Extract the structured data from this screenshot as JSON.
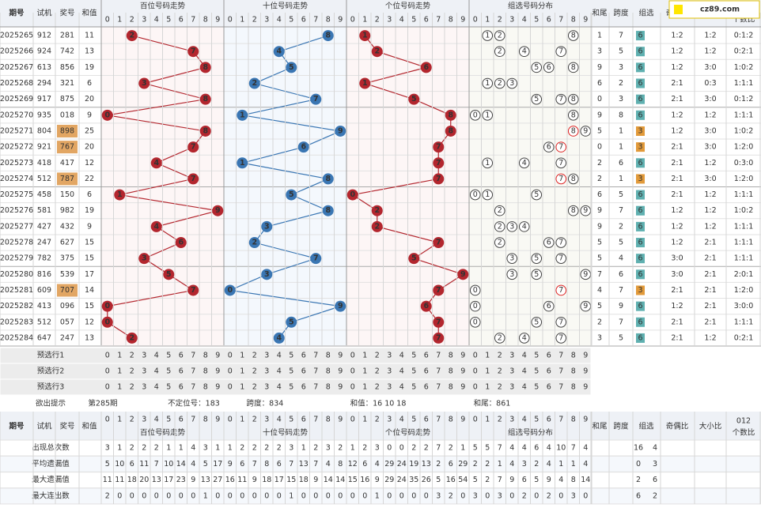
{
  "logo": "cz89.com",
  "header": {
    "period": "期号",
    "trial": "试机",
    "prize": "奖号",
    "sum": "和值",
    "sections": [
      "百位号码走势",
      "十位号码走势",
      "个位号码走势",
      "组选号码分布"
    ],
    "digits": [
      0,
      1,
      2,
      3,
      4,
      5,
      6,
      7,
      8,
      9
    ],
    "tail": "和尾",
    "span": "跨度",
    "group": "组选",
    "odd_even": "奇偶比",
    "big_small": "大小比",
    "mod3": [
      "012",
      "个数比"
    ]
  },
  "rows": [
    {
      "period": "2025265",
      "trial": "912",
      "prize": "281",
      "sum": 11,
      "digits": [
        2,
        8,
        1
      ],
      "group_digits": [
        1,
        2,
        8
      ],
      "tail": 1,
      "span": 7,
      "group": 6,
      "odd_even": "1:2",
      "big_small": "1:2",
      "mod3": "0:1:2"
    },
    {
      "period": "2025266",
      "trial": "924",
      "prize": "742",
      "sum": 13,
      "digits": [
        7,
        4,
        2
      ],
      "group_digits": [
        2,
        4,
        7
      ],
      "tail": 3,
      "span": 5,
      "group": 6,
      "odd_even": "1:2",
      "big_small": "1:2",
      "mod3": "0:2:1"
    },
    {
      "period": "2025267",
      "trial": "613",
      "prize": "856",
      "sum": 19,
      "digits": [
        8,
        5,
        6
      ],
      "group_digits": [
        5,
        6,
        8
      ],
      "tail": 9,
      "span": 3,
      "group": 6,
      "odd_even": "1:2",
      "big_small": "3:0",
      "mod3": "1:0:2"
    },
    {
      "period": "2025268",
      "trial": "294",
      "prize": "321",
      "sum": 6,
      "digits": [
        3,
        2,
        1
      ],
      "group_digits": [
        1,
        2,
        3
      ],
      "tail": 6,
      "span": 2,
      "group": 6,
      "odd_even": "2:1",
      "big_small": "0:3",
      "mod3": "1:1:1"
    },
    {
      "period": "2025269",
      "trial": "917",
      "prize": "875",
      "sum": 20,
      "digits": [
        8,
        7,
        5
      ],
      "group_digits": [
        5,
        7,
        8
      ],
      "tail": 0,
      "span": 3,
      "group": 6,
      "odd_even": "2:1",
      "big_small": "3:0",
      "mod3": "0:1:2"
    },
    {
      "period": "2025270",
      "trial": "935",
      "prize": "018",
      "sum": 9,
      "digits": [
        0,
        1,
        8
      ],
      "group_digits": [
        0,
        1,
        8
      ],
      "tail": 9,
      "span": 8,
      "group": 6,
      "odd_even": "1:2",
      "big_small": "1:2",
      "mod3": "1:1:1"
    },
    {
      "period": "2025271",
      "trial": "804",
      "prize": "898",
      "sum": 25,
      "digits": [
        8,
        9,
        8
      ],
      "group_digits": [
        8,
        9
      ],
      "repeat": 8,
      "tail": 5,
      "span": 1,
      "group": 3,
      "odd_even": "1:2",
      "big_small": "3:0",
      "mod3": "1:0:2"
    },
    {
      "period": "2025272",
      "trial": "921",
      "prize": "767",
      "sum": 20,
      "digits": [
        7,
        6,
        7
      ],
      "group_digits": [
        6,
        7
      ],
      "repeat": 7,
      "tail": 0,
      "span": 1,
      "group": 3,
      "odd_even": "2:1",
      "big_small": "3:0",
      "mod3": "1:2:0"
    },
    {
      "period": "2025273",
      "trial": "418",
      "prize": "417",
      "sum": 12,
      "digits": [
        4,
        1,
        7
      ],
      "group_digits": [
        1,
        4,
        7
      ],
      "tail": 2,
      "span": 6,
      "group": 6,
      "odd_even": "2:1",
      "big_small": "1:2",
      "mod3": "0:3:0"
    },
    {
      "period": "2025274",
      "trial": "512",
      "prize": "787",
      "sum": 22,
      "digits": [
        7,
        8,
        7
      ],
      "group_digits": [
        7,
        8
      ],
      "repeat": 7,
      "tail": 2,
      "span": 1,
      "group": 3,
      "odd_even": "2:1",
      "big_small": "3:0",
      "mod3": "1:2:0"
    },
    {
      "period": "2025275",
      "trial": "458",
      "prize": "150",
      "sum": 6,
      "digits": [
        1,
        5,
        0
      ],
      "group_digits": [
        0,
        1,
        5
      ],
      "tail": 6,
      "span": 5,
      "group": 6,
      "odd_even": "2:1",
      "big_small": "1:2",
      "mod3": "1:1:1"
    },
    {
      "period": "2025276",
      "trial": "581",
      "prize": "982",
      "sum": 19,
      "digits": [
        9,
        8,
        2
      ],
      "group_digits": [
        2,
        8,
        9
      ],
      "tail": 9,
      "span": 7,
      "group": 6,
      "odd_even": "1:2",
      "big_small": "1:2",
      "mod3": "1:0:2"
    },
    {
      "period": "2025277",
      "trial": "427",
      "prize": "432",
      "sum": 9,
      "digits": [
        4,
        3,
        2
      ],
      "group_digits": [
        2,
        3,
        4
      ],
      "tail": 9,
      "span": 2,
      "group": 6,
      "odd_even": "1:2",
      "big_small": "1:2",
      "mod3": "1:1:1"
    },
    {
      "period": "2025278",
      "trial": "247",
      "prize": "627",
      "sum": 15,
      "digits": [
        6,
        2,
        7
      ],
      "group_digits": [
        2,
        6,
        7
      ],
      "tail": 5,
      "span": 5,
      "group": 6,
      "odd_even": "1:2",
      "big_small": "2:1",
      "mod3": "1:1:1"
    },
    {
      "period": "2025279",
      "trial": "782",
      "prize": "375",
      "sum": 15,
      "digits": [
        3,
        7,
        5
      ],
      "group_digits": [
        3,
        5,
        7
      ],
      "tail": 5,
      "span": 4,
      "group": 6,
      "odd_even": "3:0",
      "big_small": "2:1",
      "mod3": "1:1:1"
    },
    {
      "period": "2025280",
      "trial": "816",
      "prize": "539",
      "sum": 17,
      "digits": [
        5,
        3,
        9
      ],
      "group_digits": [
        3,
        5,
        9
      ],
      "tail": 7,
      "span": 6,
      "group": 6,
      "odd_even": "3:0",
      "big_small": "2:1",
      "mod3": "2:0:1"
    },
    {
      "period": "2025281",
      "trial": "609",
      "prize": "707",
      "sum": 14,
      "digits": [
        7,
        0,
        7
      ],
      "group_digits": [
        0,
        7
      ],
      "repeat": 7,
      "tail": 4,
      "span": 7,
      "group": 3,
      "odd_even": "2:1",
      "big_small": "2:1",
      "mod3": "1:2:0"
    },
    {
      "period": "2025282",
      "trial": "413",
      "prize": "096",
      "sum": 15,
      "digits": [
        0,
        9,
        6
      ],
      "group_digits": [
        0,
        6,
        9
      ],
      "tail": 5,
      "span": 9,
      "group": 6,
      "odd_even": "1:2",
      "big_small": "2:1",
      "mod3": "3:0:0"
    },
    {
      "period": "2025283",
      "trial": "512",
      "prize": "057",
      "sum": 12,
      "digits": [
        0,
        5,
        7
      ],
      "group_digits": [
        0,
        5,
        7
      ],
      "tail": 2,
      "span": 7,
      "group": 6,
      "odd_even": "2:1",
      "big_small": "2:1",
      "mod3": "1:1:1"
    },
    {
      "period": "2025284",
      "trial": "647",
      "prize": "247",
      "sum": 13,
      "digits": [
        2,
        4,
        7
      ],
      "group_digits": [
        2,
        4,
        7
      ],
      "tail": 3,
      "span": 5,
      "group": 6,
      "odd_even": "2:1",
      "big_small": "1:2",
      "mod3": "0:2:1"
    }
  ],
  "preselect": [
    "预选行1",
    "预选行2",
    "预选行3"
  ],
  "hint": {
    "label": "欲出提示",
    "period": "第285期",
    "items": [
      "不定位号：183",
      "跨度：834",
      "和值：16 10 18",
      "和尾：861"
    ]
  },
  "stats": {
    "labels": [
      "出现总次数",
      "平均遗漏值",
      "最大遗漏值",
      "最大连出数"
    ],
    "rows": [
      [
        3,
        1,
        2,
        2,
        2,
        1,
        1,
        4,
        3,
        1,
        1,
        2,
        2,
        2,
        2,
        3,
        1,
        2,
        3,
        2,
        1,
        2,
        3,
        0,
        0,
        2,
        2,
        7,
        2,
        1,
        5,
        5,
        7,
        4,
        4,
        6,
        4,
        10,
        7,
        4
      ],
      [
        5,
        10,
        6,
        11,
        7,
        10,
        14,
        4,
        5,
        17,
        9,
        6,
        7,
        8,
        6,
        7,
        13,
        7,
        4,
        8,
        12,
        6,
        4,
        29,
        24,
        19,
        13,
        2,
        6,
        29,
        2,
        2,
        1,
        4,
        3,
        2,
        4,
        1,
        1,
        4
      ],
      [
        11,
        11,
        18,
        20,
        13,
        17,
        23,
        9,
        13,
        27,
        16,
        11,
        9,
        18,
        17,
        15,
        18,
        9,
        14,
        14,
        15,
        16,
        9,
        29,
        24,
        35,
        26,
        5,
        16,
        54,
        5,
        2,
        7,
        9,
        6,
        5,
        9,
        4,
        8,
        14
      ],
      [
        2,
        0,
        0,
        0,
        0,
        0,
        0,
        0,
        1,
        0,
        0,
        0,
        0,
        0,
        0,
        1,
        0,
        0,
        0,
        0,
        0,
        0,
        1,
        0,
        0,
        0,
        0,
        3,
        2,
        0,
        3,
        0,
        3,
        0,
        2,
        0,
        2,
        0,
        3,
        0
      ]
    ],
    "group": [
      [
        16,
        4
      ],
      [
        0,
        3
      ],
      [
        2,
        6
      ],
      [
        6,
        2
      ]
    ]
  }
}
